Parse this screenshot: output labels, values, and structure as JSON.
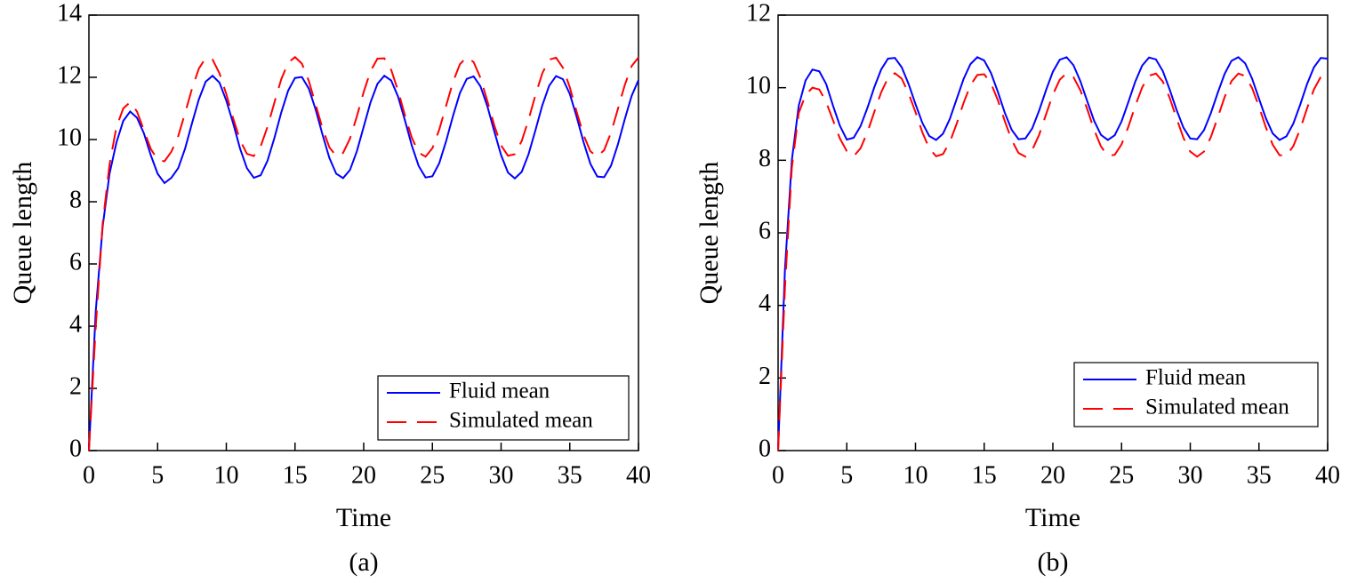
{
  "chart_data": [
    {
      "type": "line",
      "caption": "(a)",
      "xlabel": "Time",
      "ylabel": "Queue length",
      "x": [
        0,
        0.5,
        1,
        1.5,
        2,
        2.5,
        3,
        3.5,
        4,
        4.5,
        5,
        5.5,
        6,
        6.5,
        7,
        7.5,
        8,
        8.5,
        9,
        9.5,
        10,
        10.5,
        11,
        11.5,
        12,
        12.5,
        13,
        13.5,
        14,
        14.5,
        15,
        15.5,
        16,
        16.5,
        17,
        17.5,
        18,
        18.5,
        19,
        19.5,
        20,
        20.5,
        21,
        21.5,
        22,
        22.5,
        23,
        23.5,
        24,
        24.5,
        25,
        25.5,
        26,
        26.5,
        27,
        27.5,
        28,
        28.5,
        29,
        29.5,
        30,
        30.5,
        31,
        31.5,
        32,
        32.5,
        33,
        33.5,
        34,
        34.5,
        35,
        35.5,
        36,
        36.5,
        37,
        37.5,
        38,
        38.5,
        39,
        39.5,
        40
      ],
      "series": [
        {
          "name": "Fluid mean",
          "color": "#0000ff",
          "linestyle": "solid",
          "values": [
            0,
            4.5,
            7.2,
            8.9,
            9.9,
            10.6,
            10.9,
            10.7,
            10.2,
            9.5,
            8.9,
            8.6,
            8.77,
            9.08,
            9.71,
            10.52,
            11.29,
            11.86,
            12.05,
            11.83,
            11.25,
            10.52,
            9.71,
            9.08,
            8.77,
            8.85,
            9.32,
            10.05,
            10.87,
            11.57,
            11.98,
            12.01,
            11.64,
            10.97,
            10.16,
            9.41,
            8.9,
            8.76,
            9.02,
            9.62,
            10.41,
            11.2,
            11.79,
            12.05,
            11.9,
            11.38,
            10.62,
            9.81,
            9.15,
            8.78,
            8.82,
            9.24,
            9.95,
            10.76,
            11.49,
            11.95,
            12.03,
            11.71,
            11.07,
            10.27,
            9.5,
            8.94,
            8.75,
            8.96,
            9.53,
            10.3,
            11.1,
            11.73,
            12.04,
            11.94,
            11.47,
            10.73,
            9.92,
            9.22,
            8.81,
            8.79,
            9.16,
            9.84,
            10.65,
            11.4,
            11.91
          ]
        },
        {
          "name": "Simulated mean",
          "color": "#ff0000",
          "linestyle": "dashed",
          "values": [
            0,
            4.0,
            7.3,
            9.2,
            10.4,
            11.0,
            11.2,
            10.9,
            10.3,
            9.7,
            9.35,
            9.3,
            9.61,
            10.11,
            10.85,
            11.63,
            12.28,
            12.62,
            12.57,
            12.13,
            11.46,
            10.68,
            9.98,
            9.54,
            9.47,
            9.78,
            10.41,
            11.19,
            11.94,
            12.47,
            12.65,
            12.44,
            11.89,
            11.13,
            10.36,
            9.75,
            9.47,
            9.57,
            10.03,
            10.74,
            11.53,
            12.2,
            12.6,
            12.61,
            12.24,
            11.57,
            10.78,
            10.06,
            9.58,
            9.45,
            9.72,
            10.32,
            11.09,
            11.85,
            12.42,
            12.65,
            12.49,
            11.98,
            11.24,
            10.46,
            9.81,
            9.48,
            9.53,
            9.95,
            10.64,
            11.43,
            12.13,
            12.57,
            12.63,
            12.31,
            11.68,
            10.89,
            10.15,
            9.62,
            9.45,
            9.66,
            10.22,
            10.98,
            11.75,
            12.36,
            12.64
          ]
        }
      ],
      "xlim": [
        0,
        40
      ],
      "ylim": [
        0,
        14
      ],
      "xticks": [
        0,
        5,
        10,
        15,
        20,
        25,
        30,
        35,
        40
      ],
      "yticks": [
        0,
        2,
        4,
        6,
        8,
        10,
        12,
        14
      ],
      "legend": "lower right"
    },
    {
      "type": "line",
      "caption": "(b)",
      "xlabel": "Time",
      "ylabel": "Queue length",
      "x": [
        0,
        0.5,
        1,
        1.5,
        2,
        2.5,
        3,
        3.5,
        4,
        4.5,
        5,
        5.5,
        6,
        6.5,
        7,
        7.5,
        8,
        8.5,
        9,
        9.5,
        10,
        10.5,
        11,
        11.5,
        12,
        12.5,
        13,
        13.5,
        14,
        14.5,
        15,
        15.5,
        16,
        16.5,
        17,
        17.5,
        18,
        18.5,
        19,
        19.5,
        20,
        20.5,
        21,
        21.5,
        22,
        22.5,
        23,
        23.5,
        24,
        24.5,
        25,
        25.5,
        26,
        26.5,
        27,
        27.5,
        28,
        28.5,
        29,
        29.5,
        30,
        30.5,
        31,
        31.5,
        32,
        32.5,
        33,
        33.5,
        34,
        34.5,
        35,
        35.5,
        36,
        36.5,
        37,
        37.5,
        38,
        38.5,
        39,
        39.5,
        40
      ],
      "series": [
        {
          "name": "Fluid mean",
          "color": "#0000ff",
          "linestyle": "solid",
          "values": [
            0,
            5.0,
            8.0,
            9.5,
            10.2,
            10.5,
            10.45,
            10.1,
            9.5,
            8.95,
            8.57,
            8.62,
            8.94,
            9.44,
            10.01,
            10.5,
            10.8,
            10.82,
            10.56,
            10.1,
            9.55,
            9.03,
            8.67,
            8.56,
            8.73,
            9.14,
            9.69,
            10.24,
            10.65,
            10.84,
            10.75,
            10.4,
            9.88,
            9.31,
            8.84,
            8.58,
            8.6,
            8.88,
            9.37,
            9.93,
            10.44,
            10.77,
            10.84,
            10.62,
            10.18,
            9.63,
            9.09,
            8.7,
            8.56,
            8.69,
            9.07,
            9.61,
            10.17,
            10.61,
            10.83,
            10.78,
            10.46,
            9.95,
            9.39,
            8.9,
            8.6,
            8.58,
            8.83,
            9.3,
            9.86,
            10.38,
            10.74,
            10.84,
            10.67,
            10.25,
            9.7,
            9.16,
            8.74,
            8.56,
            8.66,
            9.01,
            9.53,
            10.1,
            10.56,
            10.82,
            10.8
          ]
        },
        {
          "name": "Simulated mean",
          "color": "#ff0000",
          "linestyle": "dashed",
          "values": [
            0,
            4.5,
            7.8,
            9.3,
            9.8,
            10.0,
            9.95,
            9.6,
            9.1,
            8.6,
            8.25,
            8.11,
            8.33,
            8.77,
            9.33,
            9.87,
            10.27,
            10.4,
            10.25,
            9.84,
            9.33,
            8.77,
            8.33,
            8.11,
            8.17,
            8.5,
            9.01,
            9.58,
            10.07,
            10.35,
            10.37,
            10.12,
            9.65,
            9.08,
            8.56,
            8.2,
            8.1,
            8.29,
            8.7,
            9.26,
            9.81,
            10.22,
            10.4,
            10.29,
            9.93,
            9.41,
            8.84,
            8.38,
            8.12,
            8.15,
            8.44,
            8.93,
            9.5,
            10.01,
            10.33,
            10.39,
            10.17,
            9.72,
            9.16,
            8.62,
            8.24,
            8.1,
            8.24,
            8.64,
            9.18,
            9.74,
            10.18,
            10.39,
            10.32,
            9.99,
            9.48,
            8.91,
            8.43,
            8.14,
            8.13,
            8.39,
            8.86,
            9.43,
            9.95,
            10.3,
            10.4
          ]
        }
      ],
      "xlim": [
        0,
        40
      ],
      "ylim": [
        0,
        12
      ],
      "xticks": [
        0,
        5,
        10,
        15,
        20,
        25,
        30,
        35,
        40
      ],
      "yticks": [
        0,
        2,
        4,
        6,
        8,
        10,
        12
      ],
      "legend": "lower right"
    }
  ]
}
